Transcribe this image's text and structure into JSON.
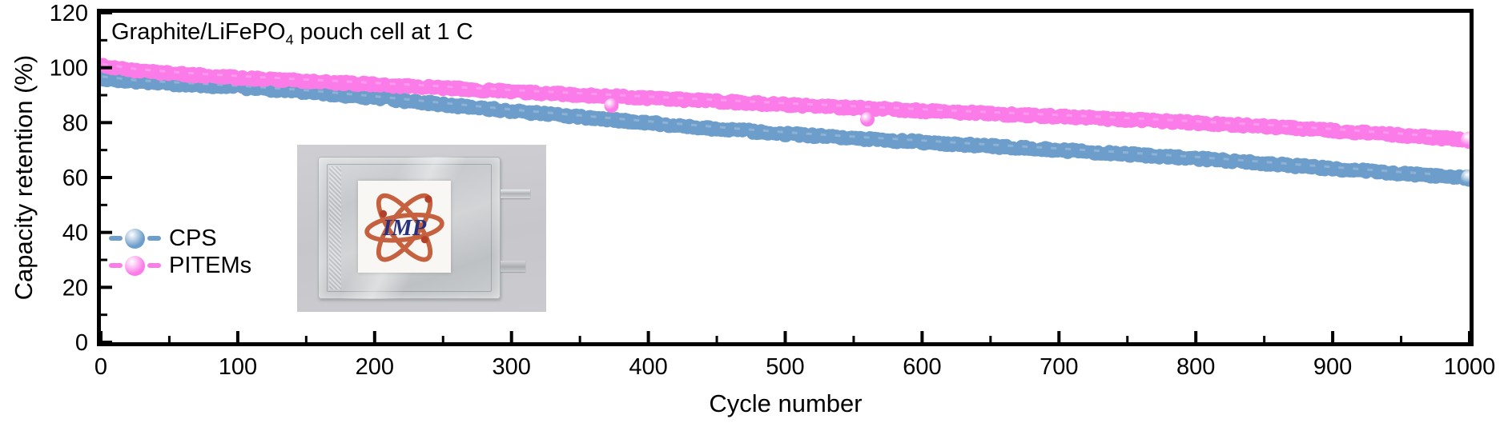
{
  "figure": {
    "title_parts": {
      "pre": "Graphite/LiFePO",
      "sub": "4",
      "post": " pouch cell at 1 C"
    }
  },
  "chart_data": {
    "type": "scatter",
    "title": "Graphite/LiFePO4 pouch cell at 1 C",
    "xlabel": "Cycle number",
    "ylabel": "Capacity retention (%)",
    "xlim": [
      0,
      1000
    ],
    "ylim": [
      0,
      120
    ],
    "x_major_ticks": [
      0,
      100,
      200,
      300,
      400,
      500,
      600,
      700,
      800,
      900,
      1000
    ],
    "x_minor_step": 50,
    "y_major_ticks": [
      0,
      20,
      40,
      60,
      80,
      100,
      120
    ],
    "y_minor_step": 10,
    "grid": false,
    "legend_position": "lower-left",
    "series": [
      {
        "name": "CPS",
        "color": "#6d9dca",
        "points": [
          [
            1,
            96.2
          ],
          [
            20,
            95.0
          ],
          [
            50,
            94.2
          ],
          [
            100,
            92.9
          ],
          [
            150,
            91.2
          ],
          [
            200,
            89.0
          ],
          [
            250,
            86.6
          ],
          [
            300,
            84.2
          ],
          [
            350,
            82.0
          ],
          [
            400,
            79.9
          ],
          [
            450,
            77.8
          ],
          [
            500,
            75.9
          ],
          [
            550,
            74.3
          ],
          [
            600,
            72.9
          ],
          [
            650,
            71.4
          ],
          [
            700,
            70.0
          ],
          [
            750,
            68.5
          ],
          [
            800,
            66.9
          ],
          [
            850,
            65.1
          ],
          [
            900,
            63.2
          ],
          [
            950,
            61.4
          ],
          [
            1000,
            59.8
          ]
        ]
      },
      {
        "name": "PITEMs",
        "color": "#fb7ce8",
        "points": [
          [
            1,
            100.8
          ],
          [
            10,
            99.8
          ],
          [
            30,
            98.7
          ],
          [
            60,
            97.6
          ],
          [
            100,
            96.4
          ],
          [
            150,
            95.1
          ],
          [
            200,
            93.9
          ],
          [
            250,
            92.6
          ],
          [
            300,
            91.3
          ],
          [
            350,
            90.1
          ],
          [
            400,
            88.9
          ],
          [
            450,
            87.7
          ],
          [
            500,
            86.5
          ],
          [
            550,
            85.4
          ],
          [
            600,
            84.3
          ],
          [
            650,
            83.2
          ],
          [
            700,
            82.2
          ],
          [
            750,
            81.1
          ],
          [
            800,
            79.9
          ],
          [
            850,
            78.6
          ],
          [
            900,
            77.1
          ],
          [
            950,
            75.4
          ],
          [
            1000,
            73.6
          ]
        ],
        "outliers": [
          [
            373,
            86.2
          ],
          [
            560,
            81.2
          ]
        ]
      }
    ]
  },
  "legend": {
    "items": [
      {
        "label": "CPS",
        "color": "#6d9dca"
      },
      {
        "label": "PITEMs",
        "color": "#fb7ce8"
      }
    ]
  },
  "inset": {
    "logo_text": "IMP",
    "logo_ring_color": "#c5613f",
    "logo_dot_color": "#b2402a",
    "logo_text_color": "#26317e"
  }
}
